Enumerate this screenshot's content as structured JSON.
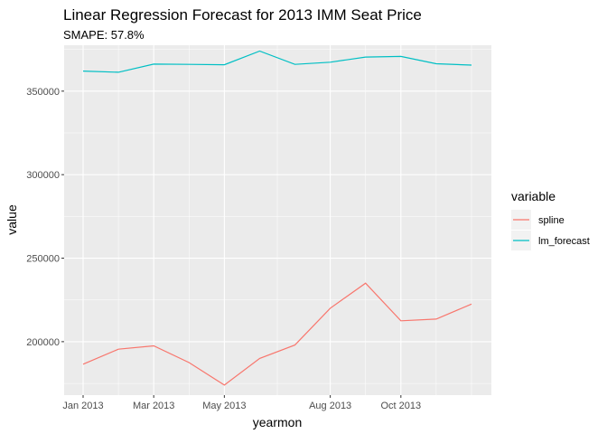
{
  "chart_data": {
    "type": "line",
    "title": "Linear Regression Forecast for 2013 IMM Seat Price",
    "subtitle": "SMAPE: 57.8%",
    "xlabel": "yearmon",
    "ylabel": "value",
    "x": [
      "2013-01",
      "2013-02",
      "2013-03",
      "2013-04",
      "2013-05",
      "2013-06",
      "2013-07",
      "2013-08",
      "2013-09",
      "2013-10",
      "2013-11",
      "2013-12"
    ],
    "x_ticks": [
      {
        "x": "2013-01",
        "label": "Jan 2013"
      },
      {
        "x": "2013-03",
        "label": "Mar 2013"
      },
      {
        "x": "2013-05",
        "label": "May 2013"
      },
      {
        "x": "2013-08",
        "label": "Aug 2013"
      },
      {
        "x": "2013-10",
        "label": "Oct 2013"
      }
    ],
    "y_ticks": [
      200000,
      250000,
      300000,
      350000
    ],
    "y_tick_labels": [
      "200000",
      "250000",
      "300000",
      "350000"
    ],
    "ylim": [
      168000,
      377500
    ],
    "grid": true,
    "legend": {
      "title": "variable",
      "position": "right"
    },
    "series": [
      {
        "name": "spline",
        "color": "#F8766D",
        "values": [
          186500,
          195500,
          197500,
          187500,
          174000,
          190000,
          198000,
          220000,
          235000,
          212500,
          213500,
          222500
        ]
      },
      {
        "name": "lm_forecast",
        "color": "#00BFC4",
        "values": [
          362000,
          361300,
          366200,
          366000,
          365800,
          374000,
          366000,
          367300,
          370400,
          370800,
          366400,
          365600
        ]
      }
    ]
  }
}
